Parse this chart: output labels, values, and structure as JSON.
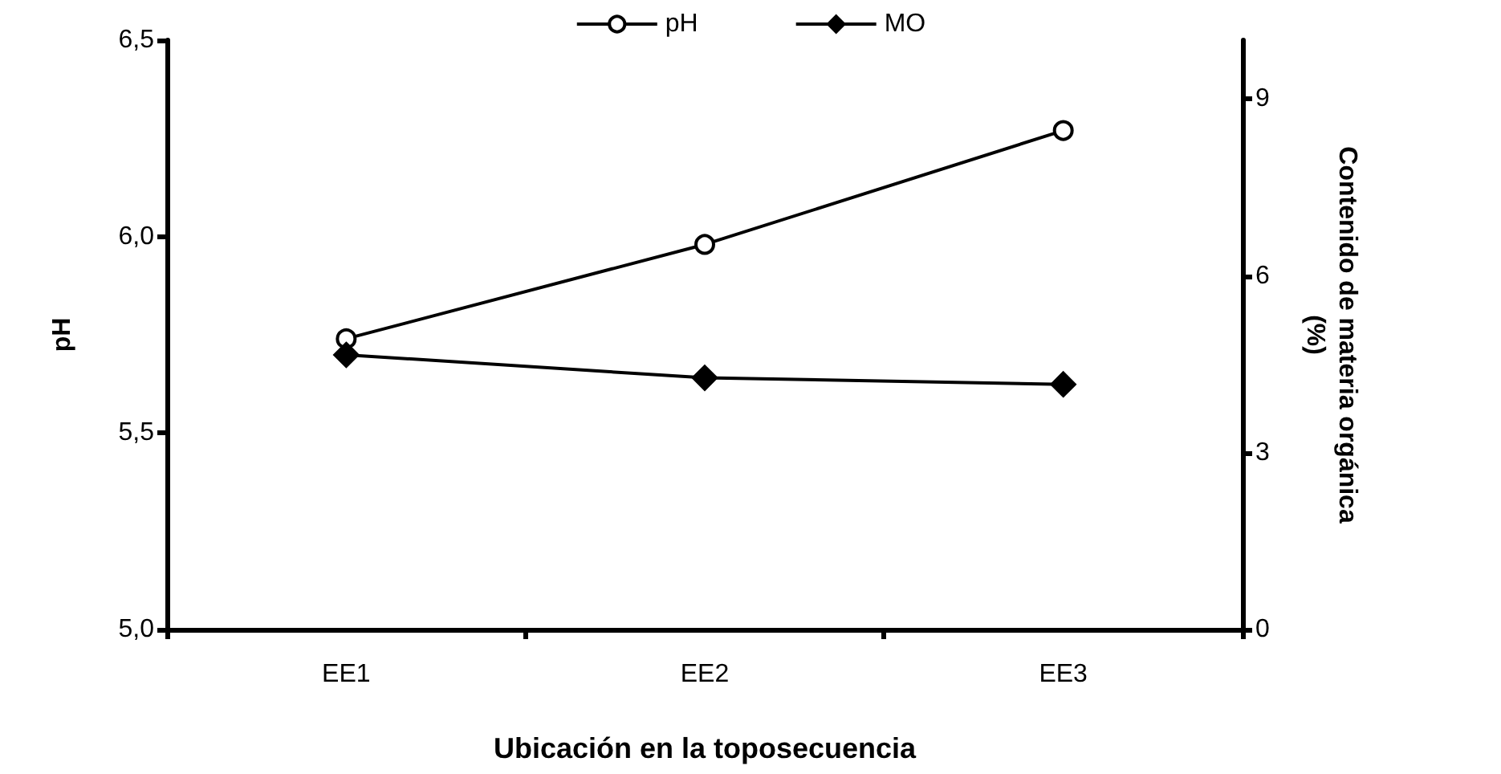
{
  "chart_data": {
    "type": "line",
    "xlabel": "Ubicación en la toposecuencia",
    "ylabel": "pH",
    "y2label": "Contenido de materia orgánica\n(%)",
    "categories": [
      "EE1",
      "EE2",
      "EE3"
    ],
    "series": [
      {
        "name": "pH",
        "color": "#000000",
        "marker": "circle",
        "values": [
          5.74,
          5.98,
          6.27
        ]
      },
      {
        "name": "MO",
        "color": "#000000",
        "marker": "diamond",
        "axis": "y2",
        "values": [
          4.66,
          4.27,
          4.16
        ]
      }
    ],
    "ylim": [
      5,
      6.5
    ],
    "yticks": [
      {
        "value": 5,
        "label": "5,0"
      },
      {
        "value": 5.5,
        "label": "5,5"
      },
      {
        "value": 6,
        "label": "6,0"
      },
      {
        "value": 6.5,
        "label": "6,5"
      }
    ],
    "y2lim": [
      0,
      10
    ],
    "y2ticks": [
      0,
      3,
      6,
      9
    ],
    "grid": false,
    "legend": "top",
    "line_style": "solid"
  }
}
